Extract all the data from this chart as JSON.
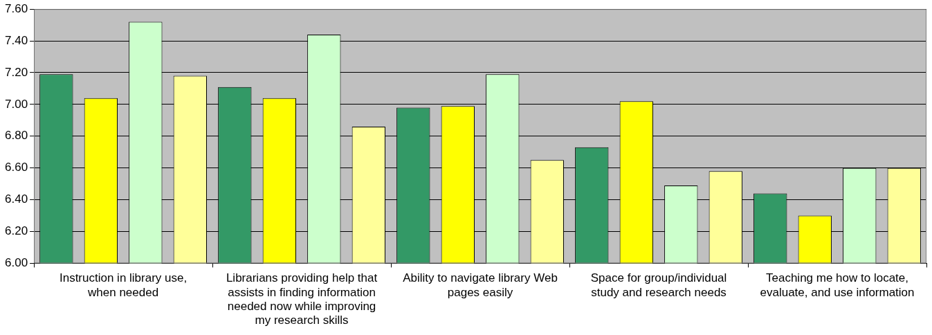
{
  "chart_data": {
    "type": "bar",
    "categories": [
      "Instruction in library use, when needed",
      "Librarians providing help that assists in finding information needed now while improving my research skills",
      "Ability to navigate library Web pages easily",
      "Space for group/individual study and research needs",
      "Teaching me how to locate, evaluate, and use information"
    ],
    "series": [
      {
        "color": "#339966",
        "values": [
          7.19,
          7.11,
          6.98,
          6.73,
          6.44
        ]
      },
      {
        "color": "#ffff00",
        "values": [
          7.04,
          7.04,
          6.99,
          7.02,
          6.3
        ]
      },
      {
        "color": "#ccffcc",
        "values": [
          7.52,
          7.44,
          7.19,
          6.49,
          6.6
        ]
      },
      {
        "color": "#ffff99",
        "values": [
          7.18,
          6.86,
          6.65,
          6.58,
          6.6
        ]
      }
    ],
    "ylim": [
      6,
      7.6
    ],
    "yticks": [
      {
        "value": 6,
        "label": "6.00"
      },
      {
        "value": 6.2,
        "label": "6.20"
      },
      {
        "value": 6.4,
        "label": "6.40"
      },
      {
        "value": 6.6,
        "label": "6.60"
      },
      {
        "value": 6.8,
        "label": "6.80"
      },
      {
        "value": 7,
        "label": "7.00"
      },
      {
        "value": 7.2,
        "label": "7.20"
      },
      {
        "value": 7.4,
        "label": "7.40"
      },
      {
        "value": 7.6,
        "label": "7.60"
      }
    ],
    "grid": "y",
    "legend": false
  }
}
